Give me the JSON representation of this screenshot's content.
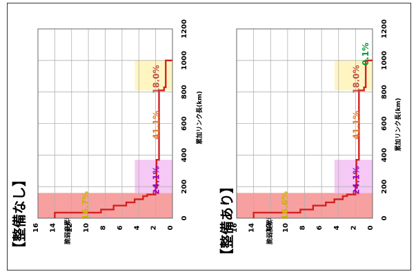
{
  "chart_data": [
    {
      "type": "area",
      "title": "【整備なし】",
      "xlabel": "累加リンク長(km)",
      "ylabel": "脆弱度累積値",
      "xlim": [
        0,
        1200
      ],
      "ylim": [
        0,
        16
      ],
      "x_ticks": [
        0,
        200,
        400,
        600,
        800,
        1000,
        1200
      ],
      "y_ticks": [
        0,
        2,
        4,
        6,
        8,
        10,
        12,
        14,
        16
      ],
      "grid": true,
      "zones": [
        {
          "from": 0,
          "to": 160,
          "pct": "16.7%",
          "color": "#f7a0a0",
          "label_color": "#c8b400"
        },
        {
          "from": 160,
          "to": 370,
          "pct": "24.1%",
          "color": "#f5c8f5",
          "label_color": "#9900cc"
        },
        {
          "from": 370,
          "to": 810,
          "pct": "41.1%",
          "color": "#ffffff",
          "label_color": "#e07a2a"
        },
        {
          "from": 810,
          "to": 1000,
          "pct": "18.0%",
          "color": "#fff5c0",
          "label_color": "#c05050"
        }
      ],
      "series": [
        {
          "x": [
            0,
            35,
            55,
            80,
            100,
            120,
            140,
            150,
            200,
            370,
            810,
            830,
            1000
          ],
          "y": [
            14,
            8.5,
            7,
            5.5,
            4.5,
            3.5,
            3,
            2,
            1.9,
            1.6,
            1,
            0.8,
            0
          ]
        }
      ]
    },
    {
      "type": "area",
      "title": "【整備あり】",
      "xlabel": "累加リンク長(km)",
      "ylabel": "脆弱度累積値",
      "xlim": [
        0,
        1200
      ],
      "ylim": [
        0,
        16
      ],
      "x_ticks": [
        0,
        200,
        400,
        600,
        800,
        1000,
        1200
      ],
      "y_ticks": [
        0,
        2,
        4,
        6,
        8,
        10,
        12,
        14,
        16
      ],
      "grid": true,
      "zones": [
        {
          "from": 0,
          "to": 160,
          "pct": "16.6%",
          "color": "#f7a0a0",
          "label_color": "#c8b400"
        },
        {
          "from": 160,
          "to": 370,
          "pct": "24.1%",
          "color": "#f5c8f5",
          "label_color": "#9900cc"
        },
        {
          "from": 370,
          "to": 810,
          "pct": "41.1%",
          "color": "#ffffff",
          "label_color": "#e07a2a"
        },
        {
          "from": 810,
          "to": 990,
          "pct": "18.0%",
          "color": "#fff5c0",
          "label_color": "#c05050"
        },
        {
          "from": 990,
          "to": 1000,
          "pct": "0.1%",
          "color": "#fff5c0",
          "label_color": "#009933"
        }
      ],
      "series": [
        {
          "x": [
            0,
            35,
            55,
            80,
            100,
            120,
            140,
            150,
            200,
            370,
            810,
            830,
            1000
          ],
          "y": [
            14,
            8.5,
            7,
            5.5,
            4.5,
            3.5,
            3,
            2,
            1.9,
            1.6,
            1,
            0.8,
            0
          ]
        }
      ]
    }
  ]
}
